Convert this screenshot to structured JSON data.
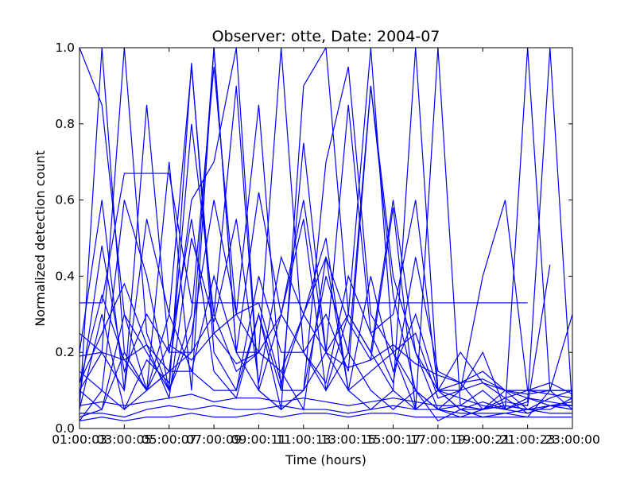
{
  "chart_data": {
    "type": "line",
    "title": "Observer: otte, Date: 2004-07",
    "xlabel": "Time (hours)",
    "ylabel": "Normalized detection count",
    "xlim": [
      1,
      23
    ],
    "ylim": [
      0.0,
      1.0
    ],
    "x_ticks": [
      1,
      3,
      5,
      7,
      9,
      11,
      13,
      15,
      17,
      19,
      21,
      23
    ],
    "x_tick_labels": [
      "01:00:03",
      "03:00:05",
      "05:00:07",
      "07:00:09",
      "09:00:11",
      "11:00:13",
      "13:00:15",
      "15:00:17",
      "17:00:19",
      "19:00:21",
      "21:00:23",
      "23:00:00"
    ],
    "y_ticks": [
      0.0,
      0.2,
      0.4,
      0.6,
      0.8,
      1.0
    ],
    "y_tick_labels": [
      "0.0",
      "0.2",
      "0.4",
      "0.6",
      "0.8",
      "1.0"
    ],
    "grid": false,
    "line_color": "#0000ff",
    "x": [
      1,
      2,
      3,
      4,
      5,
      6,
      7,
      8,
      9,
      10,
      11,
      12,
      13,
      14,
      15,
      16,
      17,
      18,
      19,
      20,
      21,
      22,
      23
    ],
    "series": [
      {
        "values": [
          1.0,
          0.85,
          0.3,
          0.1,
          0.15,
          0.2,
          1.0,
          0.2,
          0.1,
          0.05,
          0.1,
          0.4,
          0.2,
          0.1,
          0.05,
          0.1,
          0.05,
          0.06,
          0.05,
          0.08,
          0.04,
          0.06,
          0.05
        ]
      },
      {
        "values": [
          0.05,
          1.0,
          0.2,
          0.1,
          0.15,
          0.6,
          0.7,
          1.0,
          0.1,
          0.05,
          0.9,
          1.0,
          0.3,
          0.2,
          0.1,
          0.05,
          0.1,
          0.08,
          0.06,
          0.05,
          0.07,
          1.0,
          0.05
        ]
      },
      {
        "values": [
          0.1,
          0.2,
          1.0,
          0.25,
          0.1,
          0.3,
          0.95,
          0.3,
          0.85,
          0.1,
          0.1,
          0.7,
          0.95,
          0.3,
          0.2,
          0.1,
          0.05,
          0.1,
          0.2,
          0.05,
          1.0,
          0.1,
          0.1
        ]
      },
      {
        "values": [
          0.2,
          0.6,
          0.1,
          0.85,
          0.2,
          0.2,
          0.3,
          0.9,
          0.1,
          0.3,
          0.55,
          0.1,
          0.2,
          0.9,
          0.4,
          0.2,
          0.1,
          0.05,
          0.05,
          0.1,
          0.05,
          0.05,
          0.08
        ]
      },
      {
        "values": [
          0.05,
          0.3,
          0.05,
          0.1,
          0.7,
          0.1,
          1.0,
          0.2,
          0.2,
          1.0,
          0.2,
          0.1,
          0.3,
          1.0,
          0.2,
          0.05,
          1.0,
          0.06,
          0.1,
          0.05,
          0.04,
          0.06,
          0.05
        ]
      },
      {
        "values": [
          0.15,
          0.1,
          0.6,
          0.4,
          0.1,
          0.96,
          0.2,
          0.1,
          0.3,
          0.05,
          0.1,
          0.2,
          0.1,
          0.05,
          0.1,
          1.0,
          0.1,
          0.1,
          0.4,
          0.6,
          0.1,
          0.1,
          0.05
        ]
      },
      {
        "values": [
          0.33,
          0.33,
          0.67,
          0.67,
          0.67,
          0.33,
          0.33,
          0.33,
          0.33,
          0.33,
          0.33,
          0.33,
          0.33,
          0.33,
          0.33,
          0.33,
          0.33,
          0.33,
          0.33,
          0.33,
          0.33,
          null,
          null
        ]
      },
      {
        "values": [
          0.1,
          0.05,
          0.3,
          0.2,
          0.1,
          0.25,
          0.6,
          0.3,
          0.2,
          0.3,
          0.6,
          0.2,
          0.85,
          0.25,
          0.3,
          0.6,
          0.1,
          0.05,
          0.07,
          0.05,
          0.08,
          0.07,
          0.06
        ]
      },
      {
        "values": [
          0.03,
          0.05,
          0.2,
          0.1,
          0.3,
          0.15,
          0.1,
          0.1,
          0.4,
          0.2,
          0.2,
          0.3,
          0.15,
          0.9,
          0.35,
          0.1,
          0.02,
          0.05,
          0.03,
          0.04,
          0.03,
          0.1,
          0.3
        ]
      },
      {
        "values": [
          0.08,
          0.48,
          0.15,
          0.3,
          0.2,
          0.55,
          0.15,
          0.08,
          0.3,
          0.1,
          0.75,
          0.2,
          0.3,
          0.2,
          0.6,
          0.2,
          0.05,
          0.03,
          0.05,
          0.06,
          0.05,
          0.08,
          0.1
        ]
      },
      {
        "values": [
          0.02,
          0.1,
          0.05,
          0.18,
          0.12,
          0.8,
          0.3,
          0.15,
          0.2,
          0.15,
          0.05,
          0.45,
          0.1,
          0.4,
          0.15,
          0.3,
          0.1,
          0.12,
          0.15,
          0.1,
          0.08,
          0.06,
          0.07
        ]
      },
      {
        "values": [
          0.19,
          0.2,
          0.18,
          0.1,
          0.22,
          0.18,
          0.25,
          0.17,
          0.2,
          0.15,
          0.3,
          0.2,
          0.16,
          0.18,
          0.22,
          0.17,
          0.14,
          0.12,
          0.13,
          0.1,
          0.09,
          0.1,
          0.1
        ]
      },
      {
        "values": [
          0.04,
          0.04,
          0.03,
          0.05,
          0.06,
          0.05,
          0.06,
          0.05,
          0.05,
          0.06,
          0.05,
          0.05,
          0.04,
          0.05,
          0.06,
          0.05,
          0.05,
          0.04,
          0.04,
          0.04,
          0.05,
          0.04,
          0.04
        ]
      },
      {
        "values": [
          0.12,
          0.25,
          0.38,
          0.22,
          0.08,
          0.5,
          0.28,
          0.55,
          0.12,
          0.45,
          0.3,
          0.45,
          0.28,
          0.18,
          0.58,
          0.05,
          0.1,
          0.2,
          0.12,
          0.1,
          0.1,
          0.12,
          0.09
        ]
      },
      {
        "values": [
          0.06,
          0.07,
          0.06,
          0.07,
          0.08,
          0.09,
          0.07,
          0.08,
          0.08,
          0.07,
          0.08,
          0.07,
          0.06,
          0.07,
          0.08,
          0.07,
          0.06,
          0.06,
          0.05,
          0.06,
          0.05,
          0.06,
          0.06
        ]
      },
      {
        "values": [
          0.25,
          0.2,
          0.1,
          0.55,
          0.3,
          0.95,
          0.25,
          0.3,
          0.33,
          0.12,
          0.3,
          0.5,
          0.1,
          0.15,
          0.2,
          0.25,
          0.08,
          0.1,
          0.12,
          0.08,
          0.1,
          0.09,
          0.08
        ]
      },
      {
        "values": [
          0.02,
          0.03,
          0.02,
          0.03,
          0.03,
          0.04,
          0.03,
          0.03,
          0.04,
          0.03,
          0.04,
          0.04,
          0.03,
          0.04,
          0.04,
          0.03,
          0.03,
          0.03,
          0.03,
          0.03,
          0.03,
          0.03,
          0.03
        ]
      },
      {
        "values": [
          0.12,
          0.35,
          0.18,
          0.22,
          0.15,
          0.15,
          0.4,
          0.2,
          0.62,
          0.3,
          0.2,
          0.12,
          0.4,
          0.25,
          0.12,
          0.45,
          0.15,
          0.12,
          0.05,
          0.07,
          0.06,
          0.43,
          null
        ]
      }
    ]
  }
}
